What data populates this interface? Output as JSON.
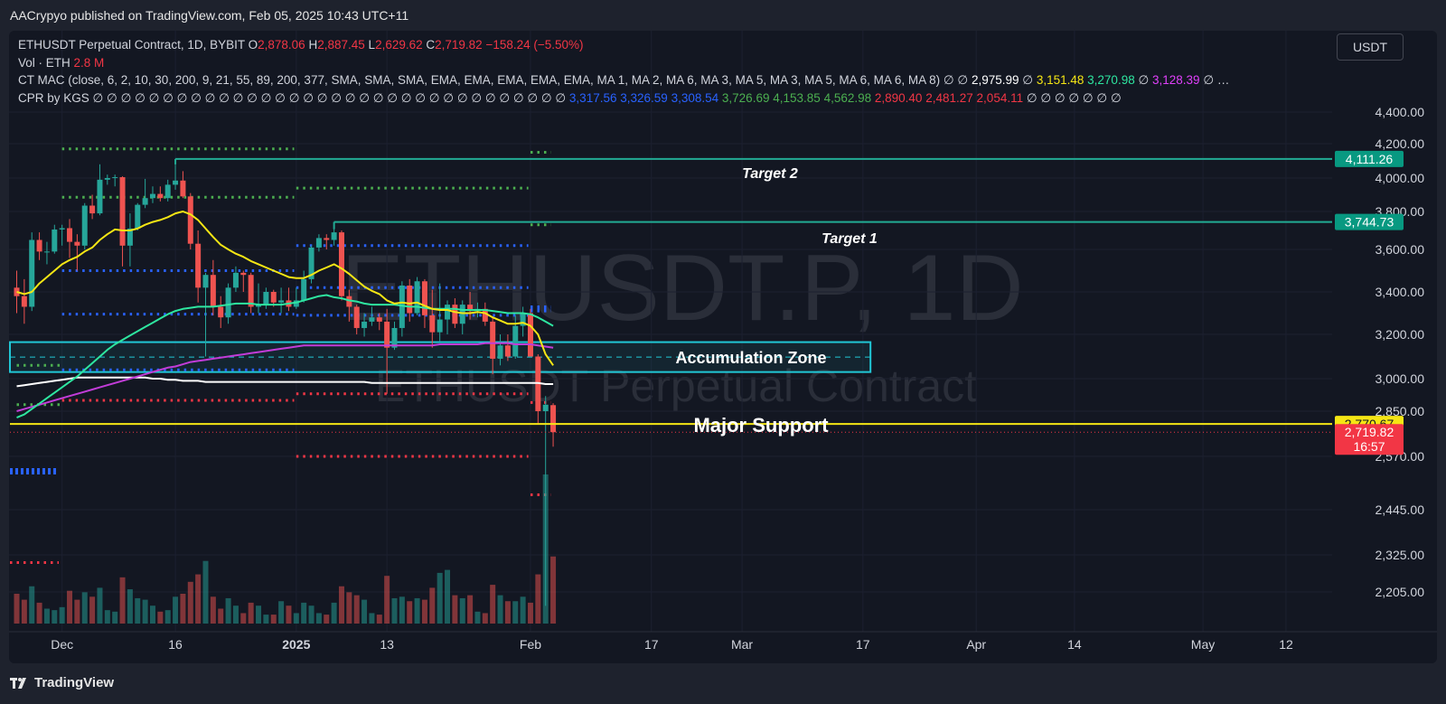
{
  "header": {
    "publish_line": "AACrypyo published on TradingView.com, Feb 05, 2025 10:43 UTC+11"
  },
  "legend": {
    "symbol_line": "ETHUSDT Perpetual Contract, 1D, BYBIT",
    "ohlc": {
      "o_label": "O",
      "o": "2,878.06",
      "h_label": "H",
      "h": "2,887.45",
      "l_label": "L",
      "l": "2,629.62",
      "c_label": "C",
      "c": "2,719.82",
      "change": "−158.24 (−5.50%)"
    },
    "volume_label": "Vol · ETH",
    "volume_value": "2.8 M",
    "ctmac_label": "CT MAC (close, 6, 2, 10, 30, 200, 9, 21, 55, 89, 200, 377, SMA, SMA, SMA, EMA, EMA, EMA, EMA, EMA, MA 1, MA 2, MA 6, MA 3, MA 5, MA 3, MA 5, MA 6, MA 6, MA 8)",
    "ctmac_filler": "∅ ∅",
    "ctmac_values": [
      "2,975.99",
      "3,151.48",
      "3,270.98",
      "3,128.39"
    ],
    "ctmac_sep": "∅",
    "ctmac_trail": "∅ …",
    "cpr_label": "CPR by KGS",
    "cpr_filler": "∅ ∅ ∅ ∅ ∅ ∅ ∅ ∅ ∅ ∅ ∅ ∅ ∅ ∅ ∅ ∅ ∅ ∅ ∅ ∅ ∅ ∅ ∅ ∅ ∅ ∅ ∅ ∅ ∅ ∅ ∅ ∅ ∅ ∅",
    "cpr_values": [
      "3,317.56",
      "3,326.59",
      "3,308.54",
      "3,726.69",
      "4,153.85",
      "4,562.98",
      "2,890.40",
      "2,481.27",
      "2,054.11"
    ],
    "cpr_trail": "∅ ∅ ∅ ∅ ∅ ∅ ∅"
  },
  "symbol_button": "USDT",
  "watermark": {
    "main": "ETHUSDT.P, 1D",
    "sub": "ETHUSDT Perpetual Contract"
  },
  "footer": {
    "brand": "TradingView"
  },
  "colors": {
    "up": "#26a69a",
    "down": "#ef5350",
    "ema_yellow": "#f5e614",
    "ema_green": "#2ee6a0",
    "ema_magenta": "#c23cd8",
    "sma_white": "#ffffff",
    "zone": "#21c7d6",
    "target_line": "#22ab94",
    "support": "#f5e614"
  },
  "chart_data": {
    "type": "candlestick",
    "title": "ETHUSDT.P, 1D",
    "y_axis": {
      "ticks": [
        "2,205.00",
        "2,325.00",
        "2,445.00",
        "2,570.00",
        "2,850.00",
        "3,000.00",
        "3,200.00",
        "3,400.00",
        "3,600.00",
        "3,800.00",
        "4,000.00",
        "4,200.00",
        "4,400.00"
      ],
      "tick_values": [
        2205,
        2325,
        2445,
        2570,
        2850,
        3000,
        3200,
        3400,
        3600,
        3800,
        4000,
        4200,
        4400
      ]
    },
    "x_axis": {
      "ticks": [
        "Dec",
        "16",
        "2025",
        "13",
        "Feb",
        "17",
        "Mar",
        "17",
        "Apr",
        "14",
        "May",
        "12"
      ],
      "tick_dates": [
        "2024-12-01",
        "2024-12-16",
        "2025-01-01",
        "2025-01-13",
        "2025-02-01",
        "2025-02-17",
        "2025-03-01",
        "2025-03-17",
        "2025-04-01",
        "2025-04-14",
        "2025-05-01",
        "2025-05-12"
      ],
      "range": [
        "2024-11-25",
        "2025-05-25"
      ]
    },
    "candles": [
      {
        "date": "2024-11-25",
        "o": 3420,
        "h": 3500,
        "l": 3300,
        "c": 3380,
        "v": 0.2
      },
      {
        "date": "2024-11-26",
        "o": 3380,
        "h": 3460,
        "l": 3250,
        "c": 3330,
        "v": 0.16
      },
      {
        "date": "2024-11-27",
        "o": 3330,
        "h": 3690,
        "l": 3310,
        "c": 3650,
        "v": 0.25
      },
      {
        "date": "2024-11-28",
        "o": 3650,
        "h": 3690,
        "l": 3550,
        "c": 3590,
        "v": 0.14
      },
      {
        "date": "2024-11-29",
        "o": 3590,
        "h": 3640,
        "l": 3530,
        "c": 3590,
        "v": 0.1
      },
      {
        "date": "2024-11-30",
        "o": 3590,
        "h": 3730,
        "l": 3580,
        "c": 3705,
        "v": 0.09
      },
      {
        "date": "2024-12-01",
        "o": 3705,
        "h": 3730,
        "l": 3620,
        "c": 3712,
        "v": 0.11
      },
      {
        "date": "2024-12-02",
        "o": 3712,
        "h": 3760,
        "l": 3560,
        "c": 3640,
        "v": 0.22
      },
      {
        "date": "2024-12-03",
        "o": 3640,
        "h": 3680,
        "l": 3500,
        "c": 3620,
        "v": 0.16
      },
      {
        "date": "2024-12-04",
        "o": 3620,
        "h": 3850,
        "l": 3600,
        "c": 3835,
        "v": 0.21
      },
      {
        "date": "2024-12-05",
        "o": 3835,
        "h": 3900,
        "l": 3760,
        "c": 3790,
        "v": 0.18
      },
      {
        "date": "2024-12-06",
        "o": 3790,
        "h": 4080,
        "l": 3780,
        "c": 3990,
        "v": 0.24
      },
      {
        "date": "2024-12-07",
        "o": 3990,
        "h": 4020,
        "l": 3960,
        "c": 4000,
        "v": 0.09
      },
      {
        "date": "2024-12-08",
        "o": 4000,
        "h": 4020,
        "l": 3950,
        "c": 4005,
        "v": 0.08
      },
      {
        "date": "2024-12-09",
        "o": 4005,
        "h": 4010,
        "l": 3520,
        "c": 3620,
        "v": 0.31
      },
      {
        "date": "2024-12-10",
        "o": 3620,
        "h": 3790,
        "l": 3520,
        "c": 3710,
        "v": 0.23
      },
      {
        "date": "2024-12-11",
        "o": 3710,
        "h": 3850,
        "l": 3700,
        "c": 3840,
        "v": 0.17
      },
      {
        "date": "2024-12-12",
        "o": 3840,
        "h": 3995,
        "l": 3820,
        "c": 3880,
        "v": 0.16
      },
      {
        "date": "2024-12-13",
        "o": 3880,
        "h": 3950,
        "l": 3850,
        "c": 3905,
        "v": 0.12
      },
      {
        "date": "2024-12-14",
        "o": 3905,
        "h": 3950,
        "l": 3860,
        "c": 3880,
        "v": 0.08
      },
      {
        "date": "2024-12-15",
        "o": 3880,
        "h": 3990,
        "l": 3860,
        "c": 3960,
        "v": 0.09
      },
      {
        "date": "2024-12-16",
        "o": 3960,
        "h": 4110,
        "l": 3930,
        "c": 3985,
        "v": 0.18
      },
      {
        "date": "2024-12-17",
        "o": 3985,
        "h": 4040,
        "l": 3880,
        "c": 3890,
        "v": 0.2
      },
      {
        "date": "2024-12-18",
        "o": 3890,
        "h": 3910,
        "l": 3600,
        "c": 3630,
        "v": 0.28
      },
      {
        "date": "2024-12-19",
        "o": 3630,
        "h": 3700,
        "l": 3350,
        "c": 3420,
        "v": 0.33
      },
      {
        "date": "2024-12-20",
        "o": 3420,
        "h": 3490,
        "l": 3100,
        "c": 3480,
        "v": 0.42
      },
      {
        "date": "2024-12-21",
        "o": 3480,
        "h": 3550,
        "l": 3290,
        "c": 3330,
        "v": 0.18
      },
      {
        "date": "2024-12-22",
        "o": 3330,
        "h": 3380,
        "l": 3230,
        "c": 3280,
        "v": 0.1
      },
      {
        "date": "2024-12-23",
        "o": 3280,
        "h": 3440,
        "l": 3250,
        "c": 3420,
        "v": 0.17
      },
      {
        "date": "2024-12-24",
        "o": 3420,
        "h": 3520,
        "l": 3400,
        "c": 3490,
        "v": 0.12
      },
      {
        "date": "2024-12-25",
        "o": 3490,
        "h": 3500,
        "l": 3400,
        "c": 3480,
        "v": 0.07
      },
      {
        "date": "2024-12-26",
        "o": 3480,
        "h": 3490,
        "l": 3300,
        "c": 3330,
        "v": 0.14
      },
      {
        "date": "2024-12-27",
        "o": 3330,
        "h": 3440,
        "l": 3300,
        "c": 3340,
        "v": 0.12
      },
      {
        "date": "2024-12-28",
        "o": 3340,
        "h": 3420,
        "l": 3320,
        "c": 3400,
        "v": 0.06
      },
      {
        "date": "2024-12-29",
        "o": 3400,
        "h": 3410,
        "l": 3330,
        "c": 3350,
        "v": 0.06
      },
      {
        "date": "2024-12-30",
        "o": 3350,
        "h": 3420,
        "l": 3300,
        "c": 3360,
        "v": 0.15
      },
      {
        "date": "2024-12-31",
        "o": 3360,
        "h": 3420,
        "l": 3310,
        "c": 3330,
        "v": 0.12
      },
      {
        "date": "2025-01-01",
        "o": 3330,
        "h": 3420,
        "l": 3320,
        "c": 3360,
        "v": 0.07
      },
      {
        "date": "2025-01-02",
        "o": 3360,
        "h": 3500,
        "l": 3350,
        "c": 3460,
        "v": 0.14
      },
      {
        "date": "2025-01-03",
        "o": 3460,
        "h": 3620,
        "l": 3440,
        "c": 3610,
        "v": 0.12
      },
      {
        "date": "2025-01-04",
        "o": 3610,
        "h": 3680,
        "l": 3590,
        "c": 3660,
        "v": 0.07
      },
      {
        "date": "2025-01-05",
        "o": 3660,
        "h": 3680,
        "l": 3600,
        "c": 3650,
        "v": 0.06
      },
      {
        "date": "2025-01-06",
        "o": 3650,
        "h": 3745,
        "l": 3620,
        "c": 3690,
        "v": 0.14
      },
      {
        "date": "2025-01-07",
        "o": 3690,
        "h": 3700,
        "l": 3360,
        "c": 3380,
        "v": 0.25
      },
      {
        "date": "2025-01-08",
        "o": 3380,
        "h": 3410,
        "l": 3260,
        "c": 3330,
        "v": 0.21
      },
      {
        "date": "2025-01-09",
        "o": 3330,
        "h": 3340,
        "l": 3200,
        "c": 3230,
        "v": 0.19
      },
      {
        "date": "2025-01-10",
        "o": 3230,
        "h": 3300,
        "l": 3190,
        "c": 3260,
        "v": 0.16
      },
      {
        "date": "2025-01-11",
        "o": 3260,
        "h": 3330,
        "l": 3240,
        "c": 3280,
        "v": 0.07
      },
      {
        "date": "2025-01-12",
        "o": 3280,
        "h": 3300,
        "l": 3220,
        "c": 3260,
        "v": 0.06
      },
      {
        "date": "2025-01-13",
        "o": 3260,
        "h": 3320,
        "l": 2930,
        "c": 3140,
        "v": 0.32
      },
      {
        "date": "2025-01-14",
        "o": 3140,
        "h": 3260,
        "l": 3130,
        "c": 3230,
        "v": 0.17
      },
      {
        "date": "2025-01-15",
        "o": 3230,
        "h": 3450,
        "l": 3190,
        "c": 3430,
        "v": 0.18
      },
      {
        "date": "2025-01-16",
        "o": 3430,
        "h": 3460,
        "l": 3260,
        "c": 3300,
        "v": 0.15
      },
      {
        "date": "2025-01-17",
        "o": 3300,
        "h": 3470,
        "l": 3290,
        "c": 3450,
        "v": 0.17
      },
      {
        "date": "2025-01-18",
        "o": 3450,
        "h": 3460,
        "l": 3230,
        "c": 3290,
        "v": 0.16
      },
      {
        "date": "2025-01-19",
        "o": 3290,
        "h": 3410,
        "l": 3140,
        "c": 3210,
        "v": 0.24
      },
      {
        "date": "2025-01-20",
        "o": 3210,
        "h": 3440,
        "l": 3170,
        "c": 3270,
        "v": 0.34
      },
      {
        "date": "2025-01-21",
        "o": 3270,
        "h": 3360,
        "l": 3200,
        "c": 3340,
        "v": 0.36
      },
      {
        "date": "2025-01-22",
        "o": 3340,
        "h": 3370,
        "l": 3230,
        "c": 3250,
        "v": 0.19
      },
      {
        "date": "2025-01-23",
        "o": 3250,
        "h": 3360,
        "l": 3200,
        "c": 3340,
        "v": 0.17
      },
      {
        "date": "2025-01-24",
        "o": 3340,
        "h": 3400,
        "l": 3270,
        "c": 3310,
        "v": 0.19
      },
      {
        "date": "2025-01-25",
        "o": 3310,
        "h": 3350,
        "l": 3280,
        "c": 3320,
        "v": 0.08
      },
      {
        "date": "2025-01-26",
        "o": 3320,
        "h": 3350,
        "l": 3240,
        "c": 3260,
        "v": 0.07
      },
      {
        "date": "2025-01-27",
        "o": 3260,
        "h": 3280,
        "l": 3020,
        "c": 3090,
        "v": 0.26
      },
      {
        "date": "2025-01-28",
        "o": 3090,
        "h": 3200,
        "l": 3060,
        "c": 3150,
        "v": 0.19
      },
      {
        "date": "2025-01-29",
        "o": 3150,
        "h": 3200,
        "l": 3080,
        "c": 3100,
        "v": 0.15
      },
      {
        "date": "2025-01-30",
        "o": 3100,
        "h": 3290,
        "l": 3090,
        "c": 3240,
        "v": 0.15
      },
      {
        "date": "2025-01-31",
        "o": 3240,
        "h": 3330,
        "l": 3190,
        "c": 3300,
        "v": 0.18
      },
      {
        "date": "2025-02-01",
        "o": 3300,
        "h": 3320,
        "l": 3100,
        "c": 3100,
        "v": 0.14
      },
      {
        "date": "2025-02-02",
        "o": 3100,
        "h": 3110,
        "l": 2770,
        "c": 2850,
        "v": 0.33
      },
      {
        "date": "2025-02-03",
        "o": 2850,
        "h": 2920,
        "l": 2160,
        "c": 2880,
        "v": 1.0
      },
      {
        "date": "2025-02-04",
        "o": 2878,
        "h": 2887,
        "l": 2630,
        "c": 2720,
        "v": 0.45
      }
    ],
    "indicators": {
      "ema_yellow": [
        3400,
        3390,
        3400,
        3440,
        3470,
        3500,
        3530,
        3550,
        3565,
        3590,
        3610,
        3650,
        3680,
        3705,
        3700,
        3700,
        3710,
        3730,
        3745,
        3755,
        3770,
        3790,
        3800,
        3785,
        3755,
        3710,
        3665,
        3625,
        3600,
        3580,
        3565,
        3545,
        3530,
        3515,
        3500,
        3485,
        3470,
        3465,
        3465,
        3480,
        3500,
        3515,
        3530,
        3510,
        3485,
        3455,
        3425,
        3405,
        3390,
        3360,
        3345,
        3350,
        3345,
        3350,
        3335,
        3320,
        3315,
        3315,
        3305,
        3300,
        3300,
        3305,
        3300,
        3280,
        3265,
        3250,
        3250,
        3255,
        3240,
        3200,
        3110,
        3060
      ],
      "ema_green": [
        2810,
        2830,
        2860,
        2885,
        2910,
        2935,
        2960,
        2985,
        3010,
        3040,
        3070,
        3100,
        3130,
        3155,
        3175,
        3195,
        3215,
        3235,
        3255,
        3275,
        3295,
        3310,
        3320,
        3325,
        3330,
        3330,
        3330,
        3335,
        3340,
        3345,
        3345,
        3345,
        3340,
        3340,
        3340,
        3340,
        3345,
        3350,
        3360,
        3370,
        3380,
        3385,
        3375,
        3370,
        3360,
        3355,
        3345,
        3340,
        3340,
        3340,
        3340,
        3335,
        3330,
        3330,
        3325,
        3320,
        3320,
        3320,
        3320,
        3315,
        3315,
        3315,
        3315,
        3310,
        3305,
        3300,
        3300,
        3300,
        3295,
        3280,
        3260,
        3240
      ],
      "ma_magenta": [
        2850,
        2860,
        2870,
        2880,
        2890,
        2900,
        2910,
        2920,
        2930,
        2940,
        2950,
        2960,
        2970,
        2980,
        2990,
        3000,
        3010,
        3020,
        3030,
        3040,
        3050,
        3055,
        3065,
        3075,
        3080,
        3085,
        3090,
        3095,
        3100,
        3105,
        3110,
        3115,
        3120,
        3125,
        3130,
        3135,
        3140,
        3145,
        3150,
        3150,
        3150,
        3150,
        3150,
        3150,
        3150,
        3150,
        3150,
        3150,
        3150,
        3150,
        3150,
        3150,
        3150,
        3150,
        3150,
        3150,
        3155,
        3155,
        3155,
        3155,
        3155,
        3155,
        3160,
        3160,
        3160,
        3160,
        3155,
        3155,
        3155,
        3150,
        3145,
        3140
      ],
      "sma_white": [
        2965,
        2970,
        2975,
        2980,
        2985,
        2990,
        2995,
        3000,
        3005,
        3005,
        3005,
        3005,
        3005,
        3005,
        3005,
        3005,
        3005,
        3005,
        3000,
        3000,
        2995,
        2995,
        2990,
        2990,
        2990,
        2985,
        2985,
        2985,
        2985,
        2985,
        2985,
        2985,
        2985,
        2985,
        2985,
        2985,
        2985,
        2985,
        2985,
        2985,
        2985,
        2985,
        2985,
        2985,
        2985,
        2985,
        2985,
        2980,
        2980,
        2980,
        2980,
        2980,
        2980,
        2980,
        2980,
        2980,
        2980,
        2980,
        2980,
        2980,
        2980,
        2980,
        2980,
        2980,
        2980,
        2980,
        2980,
        2980,
        2980,
        2980,
        2975,
        2975
      ]
    },
    "cpr_levels": [
      {
        "from": "2024-12-01",
        "to": "2024-12-31",
        "values": [
          4170,
          3885,
          3500,
          3295,
          3040,
          2900
        ],
        "colors": [
          "#4caf50",
          "#4caf50",
          "#2962ff",
          "#2962ff",
          "#2962ff",
          "#f23645"
        ]
      },
      {
        "from": "2025-01-01",
        "to": "2025-01-31",
        "values": [
          3940,
          3620,
          3420,
          3290,
          2930,
          2570
        ],
        "colors": [
          "#4caf50",
          "#2962ff",
          "#2962ff",
          "#2962ff",
          "#f23645",
          "#f23645"
        ]
      },
      {
        "from": "2025-02-01",
        "to": "2025-02-03",
        "values": [
          4150,
          3730,
          3330,
          3320,
          3310,
          2890,
          2480
        ],
        "colors": [
          "#4caf50",
          "#4caf50",
          "#2962ff",
          "#2962ff",
          "#2962ff",
          "#f23645",
          "#f23645"
        ]
      },
      {
        "from": "2024-11-25",
        "to": "2024-11-30",
        "values": [
          3060,
          2880
        ],
        "colors": [
          "#4caf50",
          "#4caf50"
        ]
      }
    ],
    "annotations": {
      "target2": {
        "label": "Target 2",
        "price": 4111.26,
        "price_label": "4,111.26",
        "from": "2024-12-16"
      },
      "target1": {
        "label": "Target 1",
        "price": 3744.73,
        "price_label": "3,744.73",
        "from": "2025-01-06"
      },
      "accumulation_zone": {
        "label": "Accumulation Zone",
        "top": 3165,
        "bottom": 3030,
        "to": "2025-03-18"
      },
      "major_support": {
        "label": "Major Support",
        "price": 2770.67,
        "price_label": "2,770.67"
      },
      "last_price": {
        "price": 2719.82,
        "price_label": "2,719.82",
        "countdown": "16:57"
      }
    }
  }
}
